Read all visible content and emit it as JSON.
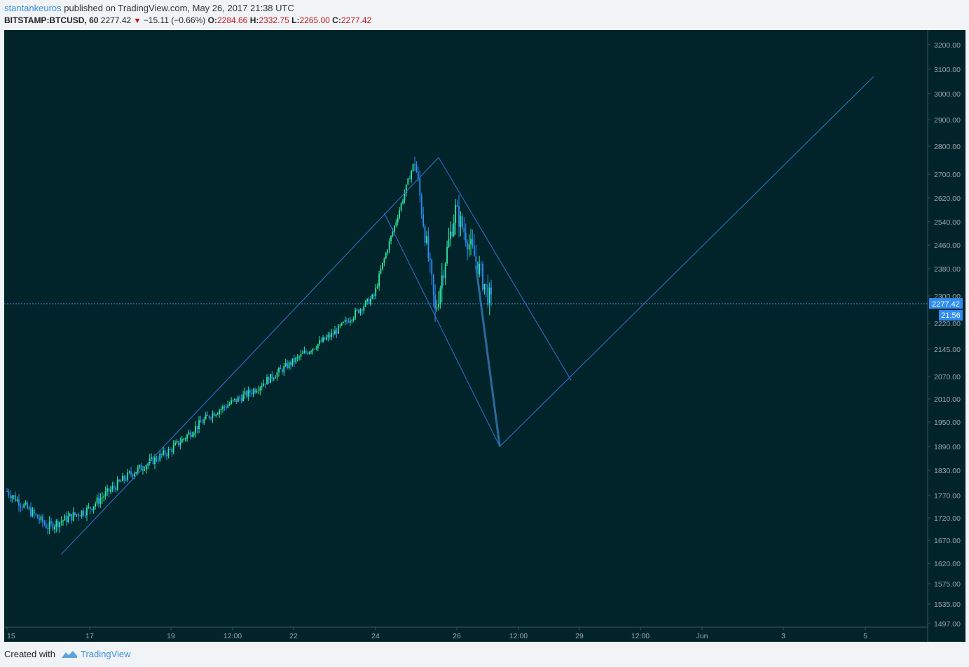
{
  "header": {
    "author": "stantankeuros",
    "published": "published on TradingView.com, May 26, 2017 21:38 UTC",
    "symbol": "BITSTAMP:BTCUSD, 60",
    "last": "2277.42",
    "change": "−15.11 (−0.66%)",
    "o_label": "O:",
    "o_val": "2284.66",
    "h_label": "H:",
    "h_val": "2332.75",
    "l_label": "L:",
    "l_val": "2265.00",
    "c_label": "C:",
    "c_val": "2277.42"
  },
  "footer": {
    "created": "Created with",
    "brand": "TradingView"
  },
  "colors": {
    "background": "#00242a",
    "up": "#2ee8a0",
    "down": "#2f8cf0",
    "line": "#2f6ecc",
    "price_line": "#3d8fd6",
    "axis_text": "#9aa6ad",
    "price_tag": "#2f8cf0",
    "forecast": "#2a6a9e"
  },
  "chart_data": {
    "type": "candlestick",
    "symbol": "BITSTAMP:BTCUSD",
    "interval": "60",
    "x_ticks": [
      "15",
      "17",
      "19",
      "12:00",
      "22",
      "24",
      "26",
      "12:00",
      "29",
      "12:00",
      "Jun",
      "3",
      "5"
    ],
    "y_ticks": [
      "3200.00",
      "3100.00",
      "3000.00",
      "2900.00",
      "2800.00",
      "2700.00",
      "2620.00",
      "2540.00",
      "2460.00",
      "2380.00",
      "2300.00",
      "2220.00",
      "2145.00",
      "2070.00",
      "2010.00",
      "1950.00",
      "1890.00",
      "1830.00",
      "1770.00",
      "1720.00",
      "1670.00",
      "1620.00",
      "1575.00",
      "1535.00",
      "1497.00"
    ],
    "last_price": "2277.42",
    "countdown": "21:56",
    "price_path": [
      {
        "date": "May 15",
        "price": 1780
      },
      {
        "date": "May 16",
        "price": 1700
      },
      {
        "date": "May 17",
        "price": 1740
      },
      {
        "date": "May 18",
        "price": 1820
      },
      {
        "date": "May 19",
        "price": 1880
      },
      {
        "date": "May 20",
        "price": 1970
      },
      {
        "date": "May 21",
        "price": 2030
      },
      {
        "date": "May 22",
        "price": 2110
      },
      {
        "date": "May 23",
        "price": 2190
      },
      {
        "date": "May 24",
        "price": 2300
      },
      {
        "date": "May 25",
        "price": 2750
      },
      {
        "date": "May 25 12:00",
        "price": 2250
      },
      {
        "date": "May 26",
        "price": 2580
      },
      {
        "date": "May 26 21:00",
        "price": 2277
      }
    ],
    "drawings": [
      {
        "name": "channel-upper-line",
        "points": [
          [
            "May 16 08:00",
            1640
          ],
          [
            "May 25 14:00",
            2760
          ]
        ]
      },
      {
        "name": "channel-drop-line",
        "points": [
          [
            "May 24 06:00",
            2570
          ],
          [
            "May 27 02:00",
            1890
          ]
        ]
      },
      {
        "name": "descending-upper-line",
        "points": [
          [
            "May 25 14:00",
            2760
          ],
          [
            "May 28 20:00",
            2060
          ]
        ]
      },
      {
        "name": "projected-up-line",
        "points": [
          [
            "May 27 02:00",
            1890
          ],
          [
            "Jun 5 06:00",
            3070
          ]
        ]
      },
      {
        "name": "forecast-arrow",
        "points": [
          [
            "May 26 12:00",
            2390
          ],
          [
            "May 27 02:00",
            1890
          ]
        ]
      }
    ]
  }
}
